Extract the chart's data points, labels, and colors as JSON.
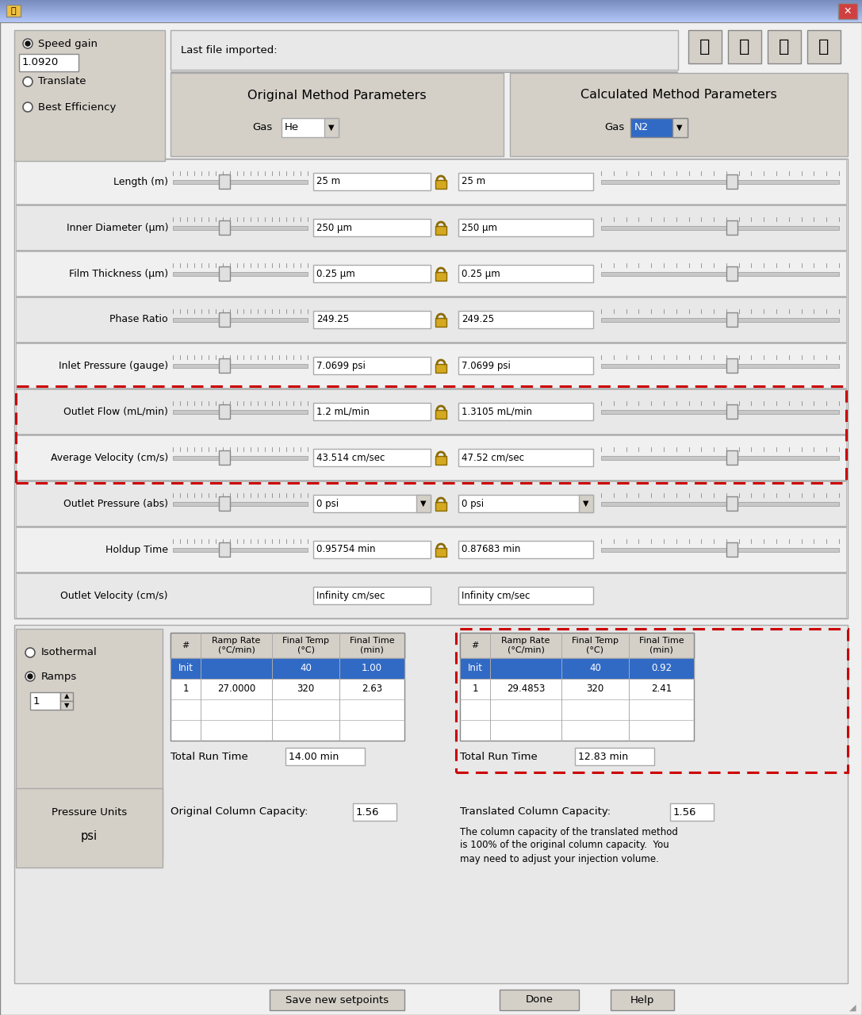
{
  "bg_color": "#f0f0f0",
  "panel_light": "#e8e8e8",
  "panel_mid": "#d4d0c8",
  "white": "#ffffff",
  "blue_sel": "#316AC5",
  "border": "#aaaaaa",
  "border_dark": "#888888",
  "red_dash": "#cc0000",
  "title_bar_color": "#6a8fc0",
  "left_panel": {
    "speed_gain_label": "Speed gain",
    "speed_gain_value": "1.0920",
    "translate_label": "Translate",
    "best_efficiency_label": "Best Efficiency"
  },
  "last_file_label": "Last file imported:",
  "original_params_title": "Original Method Parameters",
  "calculated_params_title": "Calculated Method Parameters",
  "gas_orig": "He",
  "gas_calc": "N2",
  "rows": [
    {
      "label": "Length (m)",
      "orig": "25 m",
      "calc": "25 m",
      "hl": false,
      "dd": false,
      "no_sl": false
    },
    {
      "label": "Inner Diameter (μm)",
      "orig": "250 μm",
      "calc": "250 μm",
      "hl": false,
      "dd": false,
      "no_sl": false
    },
    {
      "label": "Film Thickness (μm)",
      "orig": "0.25 μm",
      "calc": "0.25 μm",
      "hl": false,
      "dd": false,
      "no_sl": false
    },
    {
      "label": "Phase Ratio",
      "orig": "249.25",
      "calc": "249.25",
      "hl": false,
      "dd": false,
      "no_sl": false
    },
    {
      "label": "Inlet Pressure (gauge)",
      "orig": "7.0699 psi",
      "calc": "7.0699 psi",
      "hl": false,
      "dd": false,
      "no_sl": false
    },
    {
      "label": "Outlet Flow (mL/min)",
      "orig": "1.2 mL/min",
      "calc": "1.3105 mL/min",
      "hl": true,
      "dd": false,
      "no_sl": false
    },
    {
      "label": "Average Velocity (cm/s)",
      "orig": "43.514 cm/sec",
      "calc": "47.52 cm/sec",
      "hl": true,
      "dd": false,
      "no_sl": false
    },
    {
      "label": "Outlet Pressure (abs)",
      "orig": "0 psi",
      "calc": "0 psi",
      "hl": false,
      "dd": true,
      "no_sl": false
    },
    {
      "label": "Holdup Time",
      "orig": "0.95754 min",
      "calc": "0.87683 min",
      "hl": false,
      "dd": false,
      "no_sl": false
    },
    {
      "label": "Outlet Velocity (cm/s)",
      "orig": "Infinity cm/sec",
      "calc": "Infinity cm/sec",
      "hl": false,
      "dd": false,
      "no_sl": true
    }
  ],
  "isothermal_label": "Isothermal",
  "ramps_label": "Ramps",
  "ramps_value": "1",
  "orig_table_headers": [
    "#",
    "Ramp Rate\n(°C/min)",
    "Final Temp\n(°C)",
    "Final Time\n(min)"
  ],
  "orig_init_row": [
    "Init",
    "",
    "40",
    "1.00"
  ],
  "orig_data_rows": [
    [
      "1",
      "27.0000",
      "320",
      "2.63"
    ]
  ],
  "orig_total_run_time": "14.00 min",
  "orig_col_cap_label": "Original Column Capacity:",
  "orig_col_cap_value": "1.56",
  "calc_init_row": [
    "Init",
    "",
    "40",
    "0.92"
  ],
  "calc_data_rows": [
    [
      "1",
      "29.4853",
      "320",
      "2.41"
    ]
  ],
  "calc_total_run_time": "12.83 min",
  "trans_col_cap_label": "Translated Column Capacity:",
  "trans_col_cap_value": "1.56",
  "note_lines": [
    "The column capacity of the translated method",
    "is 100% of the original column capacity.  You",
    "may need to adjust your injection volume."
  ],
  "pressure_units_label": "Pressure Units",
  "pressure_units_value": "psi",
  "btn_save": "Save new setpoints",
  "btn_done": "Done",
  "btn_help": "Help"
}
